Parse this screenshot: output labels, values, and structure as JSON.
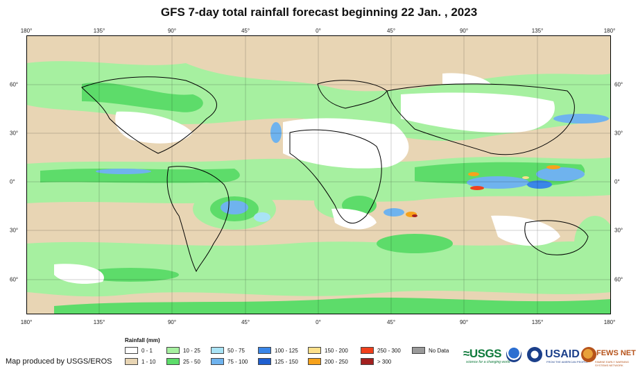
{
  "title": "GFS 7-day total rainfall forecast beginning 22 Jan. , 2023",
  "axes": {
    "lon_labels": [
      "180°",
      "135°",
      "90°",
      "45°",
      "0°",
      "45°",
      "90°",
      "135°",
      "180°"
    ],
    "lat_labels": [
      "60°",
      "30°",
      "0°",
      "30°",
      "60°"
    ]
  },
  "legend": {
    "title": "Rainfall (mm)",
    "items": [
      {
        "label": "0 - 1",
        "color": "#ffffff"
      },
      {
        "label": "1 - 10",
        "color": "#e8d5b4"
      },
      {
        "label": "10 - 25",
        "color": "#a6f0a0"
      },
      {
        "label": "25 - 50",
        "color": "#5ddc6a"
      },
      {
        "label": "50 - 75",
        "color": "#a9e3f5"
      },
      {
        "label": "75 - 100",
        "color": "#6fb3ee"
      },
      {
        "label": "100 - 125",
        "color": "#3a86e8"
      },
      {
        "label": "125 - 150",
        "color": "#1f5fd0"
      },
      {
        "label": "150 - 200",
        "color": "#fde08a"
      },
      {
        "label": "200 - 250",
        "color": "#f7a21b"
      },
      {
        "label": "250 - 300",
        "color": "#f0401c"
      },
      {
        "label": "> 300",
        "color": "#a3201f"
      },
      {
        "label": "No Data",
        "color": "#9a9a9a"
      }
    ]
  },
  "producer": "Map produced by USGS/EROS",
  "logos": {
    "usgs": "≈USGS",
    "usgs_tagline": "science for a changing world",
    "usaid": "USAID",
    "usaid_tagline": "FROM THE AMERICAN PEOPLE",
    "fews": "FEWS NET",
    "fews_tagline": "FAMINE EARLY WARNING SYSTEMS NETWORK"
  }
}
